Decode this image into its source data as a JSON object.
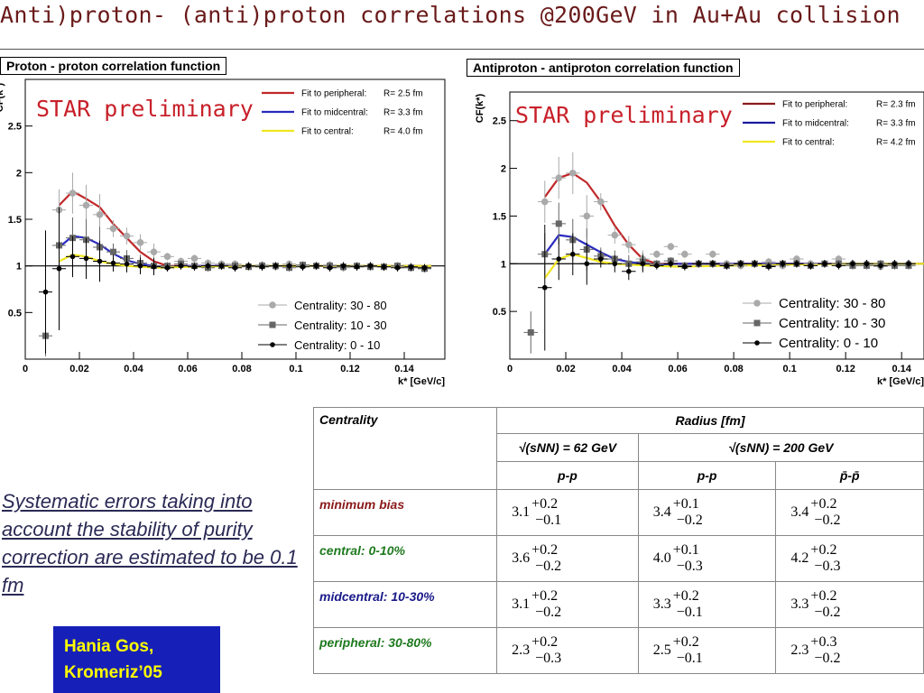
{
  "page": {
    "title": "Anti)proton- (anti)proton correlations @200GeV in Au+Au collision"
  },
  "charts": {
    "left": {
      "panel_title": "Proton - proton correlation function",
      "preliminary": "STAR preliminary",
      "fit_legend": [
        {
          "label": "Fit to peripheral:",
          "r": "R= 2.5 fm",
          "color": "#c0282a"
        },
        {
          "label": "Fit to midcentral:",
          "r": "R= 3.3 fm",
          "color": "#2b2bc0"
        },
        {
          "label": "Fit to central:",
          "r": "R= 4.0 fm",
          "color": "#f0e61e"
        }
      ],
      "centrality_legend": [
        "Centrality: 30 - 80",
        "Centrality: 10 - 30",
        "Centrality:  0 - 10"
      ],
      "xlabel": "k* [GeV/c]",
      "ylabel": "CF(k*)",
      "xticks": [
        "0",
        "0.02",
        "0.04",
        "0.06",
        "0.08",
        "0.1",
        "0.12",
        "0.14"
      ],
      "yticks": [
        "0.5",
        "1",
        "1.5",
        "2",
        "2.5"
      ]
    },
    "right": {
      "panel_title": "Antiproton - antiproton correlation function",
      "preliminary": "STAR preliminary",
      "fit_legend": [
        {
          "label": "Fit to peripheral:",
          "r": "R= 2.3 fm",
          "color": "#8a1a1a"
        },
        {
          "label": "Fit to midcentral:",
          "r": "R= 3.3 fm",
          "color": "#1a1aa0"
        },
        {
          "label": "Fit to central:",
          "r": "R= 4.2 fm",
          "color": "#f0e61e"
        }
      ],
      "centrality_legend": [
        "Centrality: 30 - 80",
        "Centrality: 10 - 30",
        "Centrality:  0 - 10"
      ],
      "xlabel": "k* [GeV/c]",
      "ylabel": "CF(k*)",
      "xticks": [
        "0",
        "0.02",
        "0.04",
        "0.06",
        "0.08",
        "0.1",
        "0.12",
        "0.14"
      ],
      "yticks": [
        "0.5",
        "1",
        "1.5",
        "2",
        "2.5"
      ]
    }
  },
  "chart_data": [
    {
      "type": "scatter",
      "title": "Proton - proton correlation function",
      "xlabel": "k* [GeV/c]",
      "ylabel": "CF(k*)",
      "xlim": [
        0,
        0.155
      ],
      "ylim": [
        0,
        3
      ],
      "grid": false,
      "legend": "top-right and bottom-right",
      "series": [
        {
          "name": "Centrality: 30 - 80",
          "color": "#aaaaaa",
          "marker": "circle",
          "x": [
            0.0125,
            0.0175,
            0.0225,
            0.0275,
            0.0325,
            0.0375,
            0.0425,
            0.0475,
            0.0525,
            0.0575,
            0.0625,
            0.0675,
            0.0725,
            0.0775,
            0.0825,
            0.0875,
            0.0925,
            0.0975,
            0.1025,
            0.1075,
            0.1125,
            0.1175,
            0.1225,
            0.1275,
            0.1325,
            0.1375,
            0.1425,
            0.1475
          ],
          "y": [
            1.6,
            1.78,
            1.65,
            1.55,
            1.4,
            1.32,
            1.25,
            1.15,
            1.1,
            1.05,
            1.08,
            1.03,
            1.02,
            1.02,
            1.0,
            1.01,
            0.99,
            1.02,
            1.0,
            1.0,
            1.01,
            0.98,
            1.0,
            1.0,
            0.99,
            1.0,
            0.98,
            0.97
          ]
        },
        {
          "name": "Centrality: 10 - 30",
          "color": "#666666",
          "marker": "square",
          "x": [
            0.0075,
            0.0125,
            0.0175,
            0.0225,
            0.0275,
            0.0325,
            0.0375,
            0.0425,
            0.0475,
            0.0525,
            0.0575,
            0.0625,
            0.0675,
            0.0725,
            0.0775,
            0.0825,
            0.0875,
            0.0925,
            0.0975,
            0.1025,
            0.1075,
            0.1125,
            0.1175,
            0.1225,
            0.1275,
            0.1325,
            0.1375,
            0.1425,
            0.1475
          ],
          "y": [
            0.25,
            1.22,
            1.3,
            1.28,
            1.2,
            1.15,
            1.08,
            1.03,
            1.0,
            1.0,
            1.02,
            1.0,
            0.98,
            1.0,
            1.0,
            0.99,
            1.0,
            1.0,
            0.98,
            1.01,
            1.0,
            1.0,
            0.99,
            1.0,
            0.99,
            0.99,
            1.0,
            0.98,
            0.97
          ]
        },
        {
          "name": "Centrality:  0 - 10",
          "color": "#000000",
          "marker": "circle",
          "x": [
            0.0075,
            0.0125,
            0.0175,
            0.0225,
            0.0275,
            0.0325,
            0.0375,
            0.0425,
            0.0475,
            0.0525,
            0.0575,
            0.0625,
            0.0675,
            0.0725,
            0.0775,
            0.0825,
            0.0875,
            0.0925,
            0.0975,
            0.1025,
            0.1075,
            0.1125,
            0.1175,
            0.1225,
            0.1275,
            0.1325,
            0.1375,
            0.1425,
            0.1475
          ],
          "y": [
            0.72,
            0.97,
            1.1,
            1.08,
            1.05,
            1.03,
            1.02,
            1.0,
            0.99,
            0.98,
            1.0,
            0.99,
            1.0,
            1.0,
            0.98,
            1.0,
            0.99,
            1.0,
            1.0,
            0.99,
            1.0,
            0.98,
            1.0,
            0.99,
            1.0,
            0.99,
            0.98,
            0.99,
            0.98
          ]
        }
      ],
      "fits": [
        {
          "name": "Fit to peripheral: R= 2.5 fm",
          "color": "#c0282a",
          "x": [
            0.0125,
            0.0175,
            0.0225,
            0.0275,
            0.0325,
            0.0375,
            0.0425,
            0.0475,
            0.0525,
            0.06,
            0.07,
            0.08,
            0.1,
            0.12,
            0.15
          ],
          "y": [
            1.65,
            1.8,
            1.72,
            1.63,
            1.45,
            1.3,
            1.15,
            1.05,
            1.0,
            1.0,
            1.0,
            1.0,
            1.0,
            1.0,
            1.0
          ]
        },
        {
          "name": "Fit to midcentral: R= 3.3 fm",
          "color": "#2b2bc0",
          "x": [
            0.0125,
            0.0175,
            0.0225,
            0.0275,
            0.0325,
            0.0375,
            0.0425,
            0.0475,
            0.0525,
            0.06,
            0.08,
            0.1,
            0.12,
            0.15
          ],
          "y": [
            1.2,
            1.32,
            1.3,
            1.23,
            1.13,
            1.06,
            1.02,
            1.0,
            0.99,
            1.0,
            1.0,
            1.0,
            1.0,
            1.0
          ]
        },
        {
          "name": "Fit to central: R= 4.0 fm",
          "color": "#f0e61e",
          "x": [
            0.0125,
            0.0175,
            0.0225,
            0.0275,
            0.0325,
            0.0375,
            0.0425,
            0.05,
            0.06,
            0.08,
            0.1,
            0.12,
            0.15
          ],
          "y": [
            1.05,
            1.12,
            1.1,
            1.05,
            1.02,
            1.0,
            0.99,
            0.98,
            0.99,
            1.0,
            1.0,
            1.0,
            1.0
          ]
        }
      ]
    },
    {
      "type": "scatter",
      "title": "Antiproton - antiproton correlation function",
      "xlabel": "k* [GeV/c]",
      "ylabel": "CF(k*)",
      "xlim": [
        0,
        0.148
      ],
      "ylim": [
        0,
        2.8
      ],
      "grid": false,
      "legend": "top-right and bottom-right",
      "series": [
        {
          "name": "Centrality: 30 - 80",
          "color": "#aaaaaa",
          "marker": "circle",
          "x": [
            0.0125,
            0.0175,
            0.0225,
            0.0275,
            0.0325,
            0.0375,
            0.0425,
            0.0475,
            0.0525,
            0.0575,
            0.0625,
            0.0675,
            0.0725,
            0.0775,
            0.0825,
            0.0875,
            0.0925,
            0.0975,
            0.1025,
            0.1075,
            0.1125,
            0.1175,
            0.1225,
            0.1275,
            0.1325,
            0.1375,
            0.1425
          ],
          "y": [
            1.65,
            1.9,
            1.95,
            1.5,
            1.65,
            1.3,
            1.2,
            1.05,
            1.1,
            1.18,
            1.1,
            1.0,
            1.1,
            1.0,
            0.98,
            1.0,
            1.02,
            0.98,
            1.05,
            1.0,
            1.0,
            1.05,
            1.0,
            1.0,
            0.97,
            1.0,
            1.0
          ]
        },
        {
          "name": "Centrality: 10 - 30",
          "color": "#666666",
          "marker": "square",
          "x": [
            0.0075,
            0.0125,
            0.0175,
            0.0225,
            0.0275,
            0.0325,
            0.0375,
            0.0425,
            0.0475,
            0.0525,
            0.0575,
            0.0625,
            0.0675,
            0.0725,
            0.0775,
            0.0825,
            0.0875,
            0.0925,
            0.0975,
            0.1025,
            0.1075,
            0.1125,
            0.1175,
            0.1225,
            0.1275,
            0.1325,
            0.1375,
            0.1425
          ],
          "y": [
            0.28,
            1.1,
            1.42,
            1.25,
            1.15,
            1.08,
            1.05,
            1.0,
            1.02,
            1.0,
            1.03,
            0.98,
            1.0,
            1.0,
            0.98,
            1.0,
            1.0,
            0.98,
            1.0,
            1.0,
            0.98,
            1.0,
            1.0,
            0.98,
            0.98,
            1.0,
            0.98,
            0.98
          ]
        },
        {
          "name": "Centrality:  0 - 10",
          "color": "#000000",
          "marker": "circle",
          "x": [
            0.0125,
            0.0175,
            0.0225,
            0.0275,
            0.0325,
            0.0375,
            0.0425,
            0.0475,
            0.0525,
            0.0575,
            0.0625,
            0.0675,
            0.0725,
            0.0775,
            0.0825,
            0.0875,
            0.0925,
            0.0975,
            0.1025,
            0.1075,
            0.1125,
            0.1175,
            0.1225,
            0.1275,
            0.1325,
            0.1375,
            0.1425
          ],
          "y": [
            0.75,
            1.05,
            1.1,
            1.0,
            1.05,
            1.0,
            0.92,
            1.0,
            0.98,
            1.0,
            0.97,
            1.0,
            1.0,
            0.98,
            1.0,
            1.0,
            0.97,
            1.0,
            1.0,
            0.98,
            1.0,
            0.98,
            1.0,
            1.0,
            0.98,
            1.0,
            1.0
          ]
        }
      ],
      "fits": [
        {
          "name": "Fit to peripheral: R= 2.3 fm",
          "color": "#c0282a",
          "x": [
            0.0125,
            0.0175,
            0.0225,
            0.0275,
            0.0325,
            0.0375,
            0.0425,
            0.0475,
            0.0525,
            0.06,
            0.08,
            0.1,
            0.12,
            0.148
          ],
          "y": [
            1.7,
            1.9,
            1.95,
            1.85,
            1.65,
            1.4,
            1.2,
            1.05,
            1.0,
            1.0,
            1.0,
            1.0,
            1.0,
            1.0
          ]
        },
        {
          "name": "Fit to midcentral: R= 3.3 fm",
          "color": "#2b2bc0",
          "x": [
            0.0125,
            0.0175,
            0.0225,
            0.0275,
            0.0325,
            0.0375,
            0.0425,
            0.0475,
            0.0525,
            0.06,
            0.08,
            0.1,
            0.148
          ],
          "y": [
            1.1,
            1.3,
            1.28,
            1.2,
            1.12,
            1.05,
            1.02,
            1.0,
            0.99,
            1.0,
            1.0,
            1.0,
            1.0
          ]
        },
        {
          "name": "Fit to central: R= 4.2 fm",
          "color": "#f0e61e",
          "x": [
            0.0125,
            0.0175,
            0.0225,
            0.0275,
            0.0325,
            0.0375,
            0.0425,
            0.05,
            0.06,
            0.08,
            0.1,
            0.12,
            0.148
          ],
          "y": [
            0.85,
            1.05,
            1.1,
            1.06,
            1.02,
            1.0,
            0.99,
            0.98,
            0.97,
            0.98,
            0.99,
            1.0,
            1.0
          ]
        }
      ]
    }
  ],
  "table": {
    "col_centrality": "Centrality",
    "col_radius": "Radius [fm]",
    "energy_62": "√(sNN) = 62 GeV",
    "energy_200": "√(sNN) = 200 GeV",
    "sub_pp_62": "p-p",
    "sub_pp_200": "p-p",
    "sub_pbar": "p̄-p̄",
    "rows": [
      {
        "label": "minimum bias",
        "color": "#8a1a1a",
        "vals": [
          [
            "3.1",
            "+0.2",
            "−0.1"
          ],
          [
            "3.4",
            "+0.1",
            "−0.2"
          ],
          [
            "3.4",
            "+0.2",
            "−0.2"
          ]
        ]
      },
      {
        "label": "central: 0-10%",
        "color": "#1f7a1f",
        "vals": [
          [
            "3.6",
            "+0.2",
            "−0.2"
          ],
          [
            "4.0",
            "+0.1",
            "−0.3"
          ],
          [
            "4.2",
            "+0.2",
            "−0.3"
          ]
        ]
      },
      {
        "label": "midcentral: 10-30%",
        "color": "#1a1a8a",
        "vals": [
          [
            "3.1",
            "+0.2",
            "−0.2"
          ],
          [
            "3.3",
            "+0.2",
            "−0.1"
          ],
          [
            "3.3",
            "+0.2",
            "−0.2"
          ]
        ]
      },
      {
        "label": "peripheral: 30-80%",
        "color": "#1f7a1f",
        "vals": [
          [
            "2.3",
            "+0.2",
            "−0.3"
          ],
          [
            "2.5",
            "+0.2",
            "−0.1"
          ],
          [
            "2.3",
            "+0.3",
            "−0.2"
          ]
        ]
      }
    ]
  },
  "note": "Systematic errors taking into account the stability of purity correction are estimated to be 0.1 fm",
  "author": "Hania Gos,\nKromeriz’05"
}
